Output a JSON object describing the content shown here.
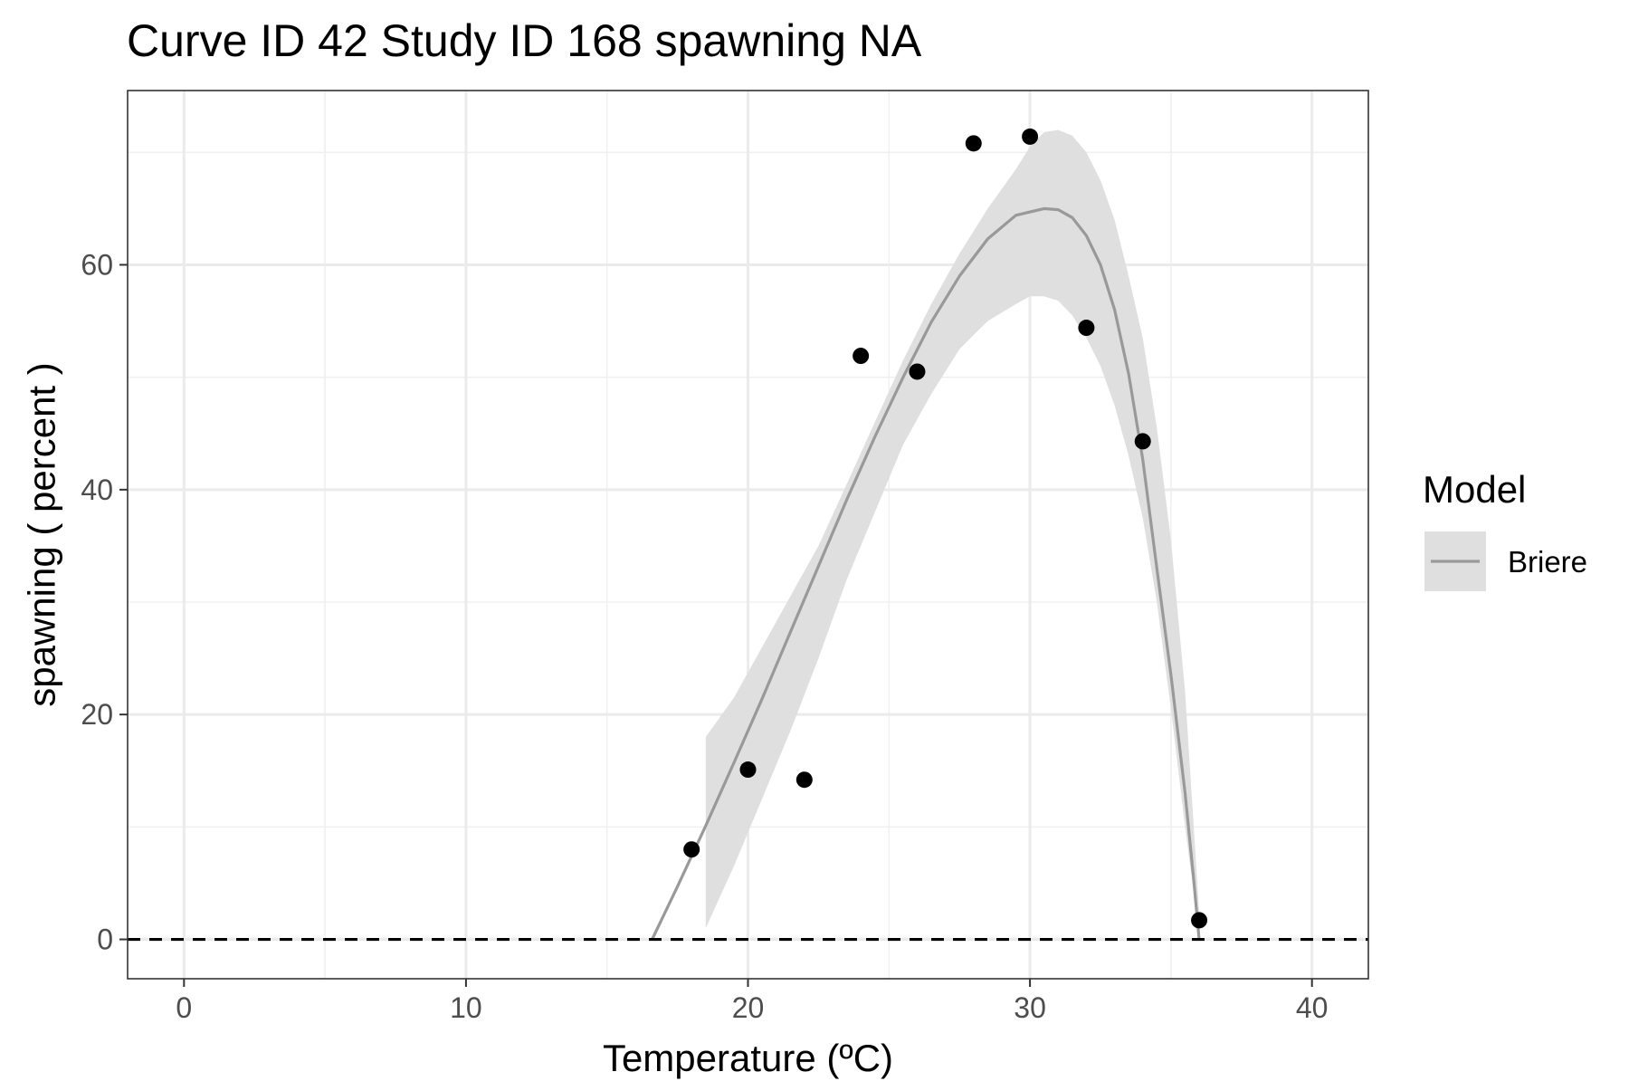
{
  "chart_data": {
    "type": "scatter",
    "title": "Curve ID 42 Study ID 168 spawning NA",
    "xlabel": "Temperature (ºC)",
    "ylabel": "spawning ( percent )",
    "xlim": [
      -2,
      42
    ],
    "ylim": [
      -3.5,
      75.5
    ],
    "x_ticks": [
      0,
      10,
      20,
      30,
      40
    ],
    "y_ticks": [
      0,
      20,
      40,
      60
    ],
    "grid": true,
    "zero_reference_line": {
      "y": 0,
      "style": "dashed"
    },
    "points": {
      "x": [
        18,
        20,
        22,
        24,
        26,
        28,
        30,
        32,
        34,
        36
      ],
      "y": [
        8.0,
        15.1,
        14.2,
        51.9,
        50.5,
        70.8,
        71.4,
        54.4,
        44.3,
        1.7
      ]
    },
    "series": [
      {
        "name": "Briere",
        "type": "line",
        "color": "#999999",
        "x": [
          16.6,
          17.5,
          18.5,
          19.5,
          20.5,
          21.5,
          22.5,
          23.5,
          24.5,
          25.5,
          26.5,
          27.5,
          28.5,
          29.5,
          30.5,
          31.0,
          31.5,
          32.0,
          32.5,
          33.0,
          33.5,
          34.0,
          34.5,
          35.0,
          35.5,
          35.8,
          36.0
        ],
        "y": [
          0,
          4.7,
          10.1,
          15.7,
          21.4,
          27.3,
          33.2,
          39.1,
          44.7,
          50.0,
          54.9,
          59.0,
          62.3,
          64.4,
          65.0,
          64.9,
          64.2,
          62.6,
          60.0,
          56.0,
          50.3,
          42.7,
          33.0,
          23.5,
          13.0,
          5.5,
          0
        ]
      }
    ],
    "confidence_band": {
      "color": "#dfdfdf",
      "x": [
        18.5,
        19.5,
        20.5,
        21.5,
        22.5,
        23.5,
        24.5,
        25.5,
        26.5,
        27.5,
        28.5,
        29.5,
        30.0,
        30.5,
        31.0,
        31.5,
        32.0,
        32.5,
        33.0,
        33.5,
        34.0,
        34.5,
        35.0,
        35.5,
        36.0
      ],
      "lower": [
        1.0,
        6.5,
        12.5,
        18.5,
        25.0,
        32.0,
        38.0,
        44.0,
        48.5,
        52.5,
        55.0,
        56.5,
        57.2,
        57.2,
        56.8,
        55.5,
        53.5,
        51.0,
        47.5,
        43.0,
        37.5,
        30.0,
        20.5,
        10.0,
        0.5
      ],
      "upper": [
        18.0,
        21.5,
        26.0,
        30.5,
        35.0,
        40.5,
        46.0,
        51.5,
        56.5,
        61.0,
        65.0,
        68.5,
        70.5,
        71.8,
        72.0,
        71.5,
        70.0,
        67.5,
        64.0,
        59.0,
        53.5,
        45.5,
        35.5,
        22.0,
        2.5
      ]
    },
    "legend": {
      "title": "Model",
      "position": "right",
      "entries": [
        "Briere"
      ]
    }
  }
}
